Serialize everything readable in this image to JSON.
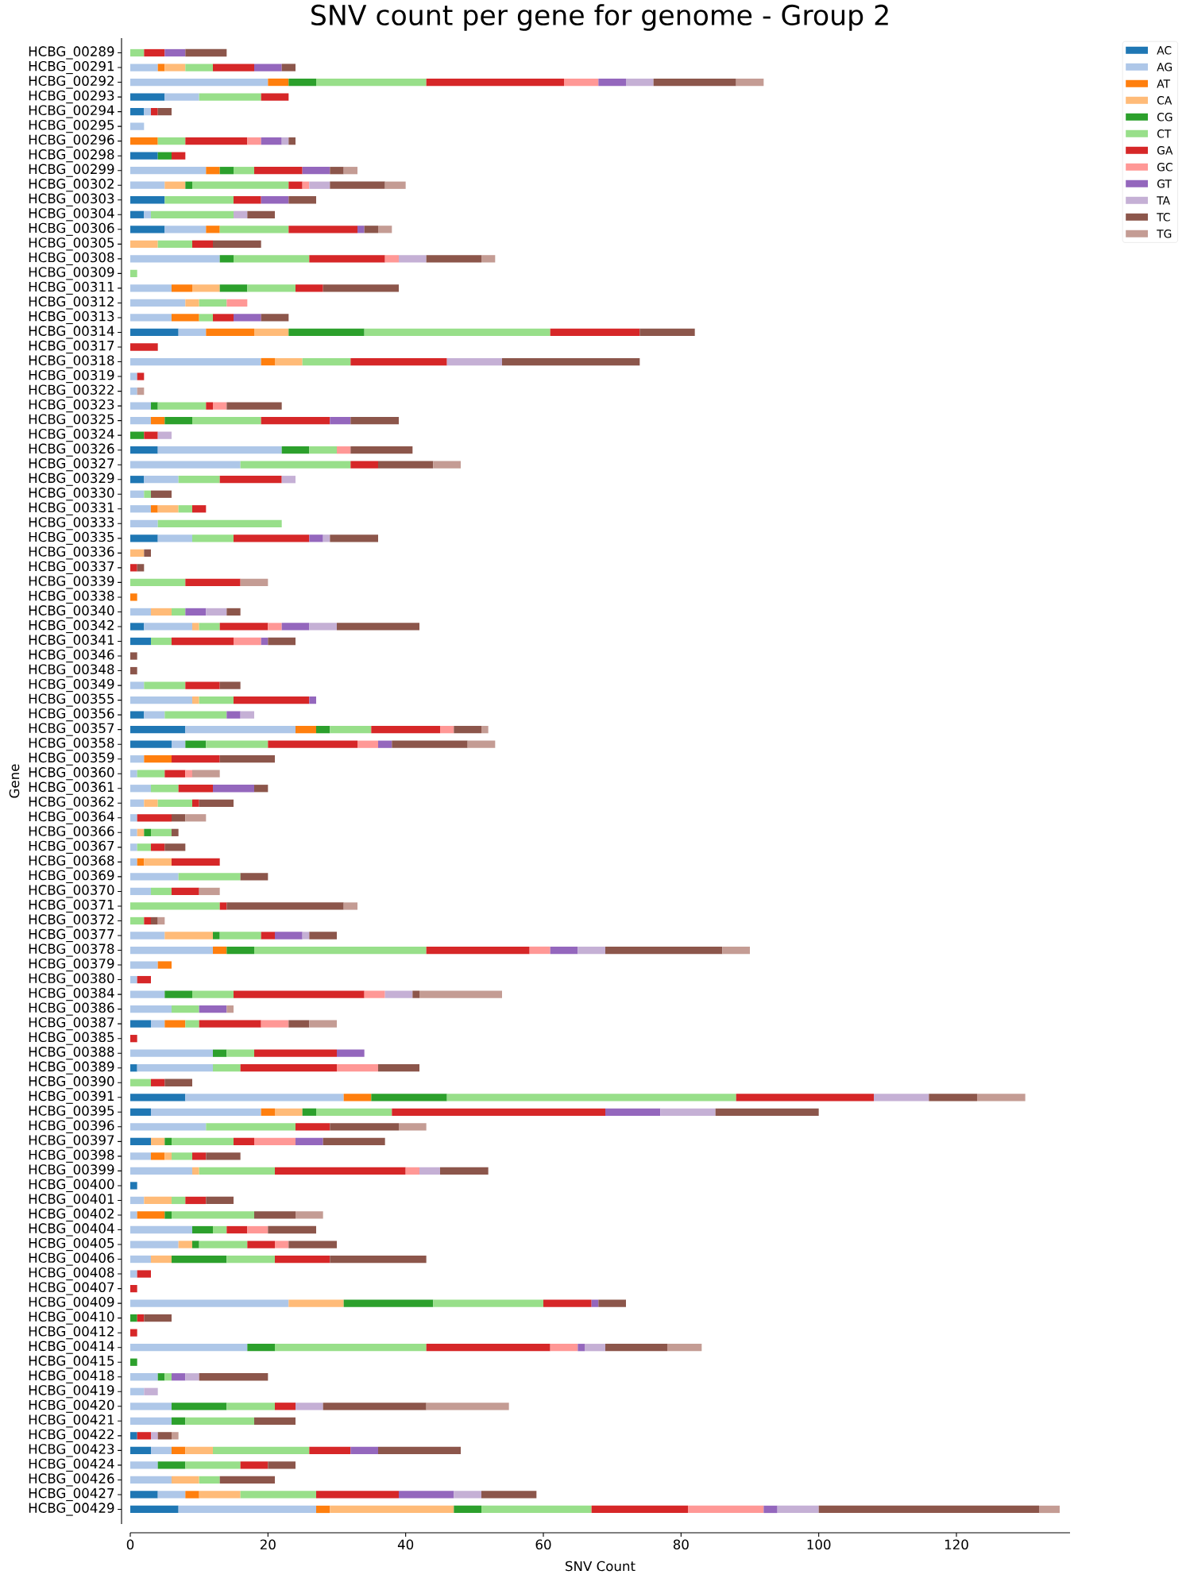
{
  "chart_data": {
    "type": "bar",
    "orientation": "horizontal",
    "stacked": true,
    "title": "SNV count per gene for genome - Group 2",
    "xlabel": "SNV Count",
    "ylabel": "Gene",
    "categories": [
      "HCBG_00289",
      "HCBG_00291",
      "HCBG_00292",
      "HCBG_00293",
      "HCBG_00294",
      "HCBG_00295",
      "HCBG_00296",
      "HCBG_00298",
      "HCBG_00299",
      "HCBG_00302",
      "HCBG_00303",
      "HCBG_00304",
      "HCBG_00306",
      "HCBG_00305",
      "HCBG_00308",
      "HCBG_00309",
      "HCBG_00311",
      "HCBG_00312",
      "HCBG_00313",
      "HCBG_00314",
      "HCBG_00317",
      "HCBG_00318",
      "HCBG_00319",
      "HCBG_00322",
      "HCBG_00323",
      "HCBG_00325",
      "HCBG_00324",
      "HCBG_00326",
      "HCBG_00327",
      "HCBG_00329",
      "HCBG_00330",
      "HCBG_00331",
      "HCBG_00333",
      "HCBG_00335",
      "HCBG_00336",
      "HCBG_00337",
      "HCBG_00339",
      "HCBG_00338",
      "HCBG_00340",
      "HCBG_00342",
      "HCBG_00341",
      "HCBG_00346",
      "HCBG_00348",
      "HCBG_00349",
      "HCBG_00355",
      "HCBG_00356",
      "HCBG_00357",
      "HCBG_00358",
      "HCBG_00359",
      "HCBG_00360",
      "HCBG_00361",
      "HCBG_00362",
      "HCBG_00364",
      "HCBG_00366",
      "HCBG_00367",
      "HCBG_00368",
      "HCBG_00369",
      "HCBG_00370",
      "HCBG_00371",
      "HCBG_00372",
      "HCBG_00377",
      "HCBG_00378",
      "HCBG_00379",
      "HCBG_00380",
      "HCBG_00384",
      "HCBG_00386",
      "HCBG_00387",
      "HCBG_00385",
      "HCBG_00388",
      "HCBG_00389",
      "HCBG_00390",
      "HCBG_00391",
      "HCBG_00395",
      "HCBG_00396",
      "HCBG_00397",
      "HCBG_00398",
      "HCBG_00399",
      "HCBG_00400",
      "HCBG_00401",
      "HCBG_00402",
      "HCBG_00404",
      "HCBG_00405",
      "HCBG_00406",
      "HCBG_00408",
      "HCBG_00407",
      "HCBG_00409",
      "HCBG_00410",
      "HCBG_00412",
      "HCBG_00414",
      "HCBG_00415",
      "HCBG_00418",
      "HCBG_00419",
      "HCBG_00420",
      "HCBG_00421",
      "HCBG_00422",
      "HCBG_00423",
      "HCBG_00424",
      "HCBG_00426",
      "HCBG_00427",
      "HCBG_00429"
    ],
    "series": [
      {
        "name": "AC",
        "color": "#1f77b4",
        "values": [
          null,
          null,
          null,
          5,
          2,
          null,
          null,
          4,
          null,
          null,
          5,
          2,
          5,
          null,
          null,
          null,
          null,
          null,
          null,
          7,
          null,
          null,
          null,
          null,
          null,
          null,
          null,
          4,
          null,
          2,
          null,
          null,
          null,
          4,
          null,
          null,
          null,
          null,
          null,
          2,
          3,
          null,
          null,
          null,
          null,
          2,
          8,
          6,
          null,
          null,
          null,
          null,
          null,
          null,
          null,
          null,
          null,
          null,
          null,
          null,
          null,
          null,
          null,
          null,
          null,
          null,
          3,
          null,
          null,
          1,
          null,
          8,
          3,
          null,
          3,
          null,
          null,
          1,
          null,
          null,
          null,
          null,
          null,
          null,
          null,
          null,
          null,
          null,
          null,
          null,
          null,
          null,
          null,
          null,
          1,
          3,
          null,
          null,
          4,
          7
        ]
      },
      {
        "name": "AG",
        "color": "#aec7e8",
        "values": [
          null,
          4,
          20,
          5,
          1,
          2,
          null,
          null,
          11,
          5,
          null,
          1,
          6,
          null,
          13,
          null,
          6,
          8,
          6,
          4,
          null,
          19,
          1,
          1,
          3,
          3,
          null,
          18,
          16,
          5,
          2,
          3,
          4,
          5,
          null,
          null,
          null,
          null,
          3,
          7,
          null,
          null,
          null,
          2,
          9,
          3,
          16,
          2,
          2,
          1,
          3,
          2,
          1,
          1,
          1,
          1,
          7,
          3,
          null,
          null,
          5,
          12,
          4,
          1,
          5,
          6,
          2,
          null,
          12,
          11,
          null,
          23,
          16,
          11,
          null,
          3,
          9,
          null,
          2,
          1,
          9,
          7,
          3,
          1,
          null,
          23,
          null,
          null,
          17,
          null,
          4,
          2,
          6,
          6,
          null,
          3,
          4,
          6,
          4,
          20
        ]
      },
      {
        "name": "AT",
        "color": "#ff7f0e",
        "values": [
          null,
          1,
          3,
          null,
          null,
          null,
          4,
          null,
          2,
          null,
          null,
          null,
          2,
          null,
          null,
          null,
          3,
          null,
          4,
          7,
          null,
          2,
          null,
          null,
          null,
          2,
          null,
          null,
          null,
          null,
          null,
          1,
          null,
          null,
          null,
          null,
          null,
          1,
          null,
          null,
          null,
          null,
          null,
          null,
          null,
          null,
          3,
          null,
          4,
          null,
          null,
          null,
          null,
          null,
          null,
          1,
          null,
          null,
          null,
          null,
          null,
          2,
          2,
          null,
          null,
          null,
          3,
          null,
          null,
          null,
          null,
          4,
          2,
          null,
          null,
          2,
          null,
          null,
          null,
          4,
          null,
          null,
          null,
          null,
          null,
          null,
          null,
          null,
          null,
          null,
          null,
          null,
          null,
          null,
          null,
          2,
          null,
          null,
          2,
          2
        ]
      },
      {
        "name": "CA",
        "color": "#ffbb78",
        "values": [
          null,
          3,
          null,
          null,
          null,
          null,
          null,
          null,
          null,
          3,
          null,
          null,
          null,
          4,
          null,
          null,
          4,
          2,
          null,
          5,
          null,
          4,
          null,
          null,
          null,
          null,
          null,
          null,
          null,
          null,
          null,
          3,
          null,
          null,
          2,
          null,
          null,
          null,
          3,
          1,
          null,
          null,
          null,
          null,
          1,
          null,
          null,
          null,
          null,
          null,
          null,
          2,
          null,
          1,
          null,
          4,
          null,
          null,
          null,
          null,
          7,
          null,
          null,
          null,
          null,
          null,
          null,
          null,
          null,
          null,
          null,
          null,
          4,
          null,
          2,
          1,
          1,
          null,
          4,
          null,
          null,
          2,
          3,
          null,
          null,
          8,
          null,
          null,
          null,
          null,
          null,
          null,
          null,
          null,
          null,
          4,
          null,
          4,
          6,
          18
        ]
      },
      {
        "name": "CG",
        "color": "#2ca02c",
        "values": [
          null,
          null,
          4,
          null,
          null,
          null,
          null,
          2,
          2,
          1,
          null,
          null,
          null,
          null,
          2,
          null,
          4,
          null,
          null,
          11,
          null,
          null,
          null,
          null,
          1,
          4,
          2,
          4,
          null,
          null,
          null,
          null,
          null,
          null,
          null,
          null,
          null,
          null,
          null,
          null,
          null,
          null,
          null,
          null,
          null,
          null,
          2,
          3,
          null,
          null,
          null,
          null,
          null,
          1,
          null,
          null,
          null,
          null,
          null,
          null,
          1,
          4,
          null,
          null,
          4,
          null,
          null,
          null,
          2,
          null,
          null,
          11,
          2,
          null,
          1,
          null,
          null,
          null,
          null,
          1,
          3,
          1,
          8,
          null,
          null,
          13,
          1,
          null,
          4,
          1,
          1,
          null,
          8,
          2,
          null,
          null,
          4,
          null,
          null,
          4
        ]
      },
      {
        "name": "CT",
        "color": "#98df8a",
        "values": [
          2,
          4,
          16,
          9,
          null,
          null,
          4,
          null,
          3,
          14,
          10,
          12,
          10,
          5,
          11,
          1,
          7,
          4,
          2,
          27,
          null,
          7,
          null,
          null,
          7,
          10,
          null,
          4,
          16,
          6,
          1,
          2,
          18,
          6,
          null,
          null,
          8,
          null,
          2,
          3,
          3,
          null,
          null,
          6,
          5,
          9,
          6,
          9,
          null,
          4,
          4,
          5,
          null,
          3,
          2,
          null,
          9,
          3,
          13,
          2,
          6,
          25,
          null,
          null,
          6,
          4,
          2,
          null,
          4,
          4,
          3,
          42,
          11,
          13,
          9,
          3,
          11,
          null,
          2,
          12,
          2,
          7,
          7,
          null,
          null,
          16,
          null,
          null,
          22,
          null,
          1,
          null,
          7,
          10,
          null,
          14,
          8,
          3,
          11,
          16
        ]
      },
      {
        "name": "GA",
        "color": "#d62728",
        "values": [
          3,
          6,
          20,
          4,
          1,
          null,
          9,
          2,
          7,
          2,
          4,
          null,
          10,
          3,
          11,
          null,
          4,
          null,
          3,
          13,
          4,
          14,
          1,
          null,
          1,
          10,
          2,
          null,
          4,
          9,
          null,
          2,
          null,
          11,
          null,
          1,
          8,
          null,
          null,
          7,
          9,
          null,
          null,
          5,
          11,
          null,
          10,
          13,
          7,
          3,
          5,
          1,
          5,
          null,
          2,
          7,
          null,
          4,
          1,
          1,
          2,
          15,
          null,
          2,
          19,
          null,
          9,
          1,
          12,
          14,
          2,
          20,
          31,
          5,
          3,
          2,
          19,
          null,
          3,
          null,
          3,
          4,
          8,
          2,
          1,
          7,
          1,
          1,
          18,
          null,
          null,
          null,
          3,
          null,
          2,
          6,
          4,
          null,
          12,
          14
        ]
      },
      {
        "name": "GC",
        "color": "#ff9896",
        "values": [
          null,
          null,
          5,
          null,
          null,
          null,
          2,
          null,
          null,
          1,
          null,
          null,
          null,
          null,
          2,
          null,
          null,
          3,
          null,
          null,
          null,
          null,
          null,
          null,
          2,
          null,
          null,
          2,
          null,
          null,
          null,
          null,
          null,
          null,
          null,
          null,
          null,
          null,
          null,
          2,
          4,
          null,
          null,
          null,
          null,
          null,
          2,
          3,
          null,
          1,
          null,
          null,
          null,
          null,
          null,
          null,
          null,
          null,
          null,
          null,
          null,
          3,
          null,
          null,
          3,
          null,
          4,
          null,
          null,
          6,
          null,
          null,
          null,
          null,
          6,
          null,
          2,
          null,
          null,
          null,
          3,
          2,
          null,
          null,
          null,
          null,
          null,
          null,
          4,
          null,
          null,
          null,
          null,
          null,
          null,
          null,
          null,
          null,
          null,
          11
        ]
      },
      {
        "name": "GT",
        "color": "#9467bd",
        "values": [
          3,
          4,
          4,
          null,
          null,
          null,
          3,
          null,
          4,
          null,
          4,
          null,
          1,
          null,
          null,
          null,
          null,
          null,
          4,
          null,
          null,
          null,
          null,
          null,
          null,
          3,
          null,
          null,
          null,
          null,
          null,
          null,
          null,
          2,
          null,
          null,
          null,
          null,
          3,
          4,
          1,
          null,
          null,
          null,
          1,
          2,
          null,
          2,
          null,
          null,
          6,
          null,
          null,
          null,
          null,
          null,
          null,
          null,
          null,
          null,
          4,
          4,
          null,
          null,
          null,
          4,
          null,
          null,
          4,
          null,
          null,
          null,
          8,
          null,
          4,
          null,
          null,
          null,
          null,
          null,
          null,
          null,
          null,
          null,
          null,
          1,
          null,
          null,
          1,
          null,
          2,
          null,
          null,
          null,
          null,
          4,
          null,
          null,
          8,
          2
        ]
      },
      {
        "name": "TA",
        "color": "#c5b0d5",
        "values": [
          null,
          null,
          4,
          null,
          null,
          null,
          1,
          null,
          null,
          3,
          null,
          2,
          null,
          null,
          4,
          null,
          null,
          null,
          null,
          null,
          null,
          8,
          null,
          null,
          null,
          null,
          2,
          null,
          null,
          2,
          null,
          null,
          null,
          1,
          null,
          null,
          null,
          null,
          3,
          4,
          null,
          null,
          null,
          null,
          null,
          2,
          null,
          null,
          null,
          null,
          null,
          null,
          null,
          null,
          null,
          null,
          null,
          null,
          null,
          null,
          1,
          4,
          null,
          null,
          4,
          null,
          null,
          null,
          null,
          null,
          null,
          8,
          8,
          null,
          null,
          null,
          3,
          null,
          null,
          null,
          null,
          null,
          null,
          null,
          null,
          null,
          null,
          null,
          3,
          null,
          2,
          2,
          4,
          null,
          1,
          null,
          null,
          null,
          4,
          6
        ]
      },
      {
        "name": "TC",
        "color": "#8c564b",
        "values": [
          6,
          2,
          12,
          null,
          2,
          null,
          1,
          null,
          2,
          8,
          4,
          4,
          2,
          7,
          8,
          null,
          11,
          null,
          4,
          8,
          null,
          20,
          null,
          null,
          8,
          7,
          null,
          9,
          8,
          null,
          3,
          null,
          null,
          7,
          1,
          1,
          null,
          null,
          2,
          12,
          4,
          1,
          1,
          3,
          null,
          null,
          4,
          11,
          8,
          null,
          2,
          5,
          2,
          1,
          3,
          null,
          4,
          null,
          17,
          1,
          4,
          17,
          null,
          null,
          1,
          null,
          3,
          null,
          null,
          6,
          4,
          7,
          15,
          10,
          9,
          5,
          7,
          null,
          4,
          6,
          7,
          7,
          14,
          null,
          null,
          4,
          4,
          null,
          9,
          null,
          10,
          null,
          15,
          6,
          2,
          12,
          4,
          8,
          8,
          32
        ]
      },
      {
        "name": "TG",
        "color": "#c49c94",
        "values": [
          null,
          null,
          4,
          null,
          null,
          null,
          null,
          null,
          2,
          3,
          null,
          null,
          2,
          null,
          2,
          null,
          null,
          null,
          null,
          null,
          null,
          null,
          null,
          1,
          null,
          null,
          null,
          null,
          4,
          null,
          null,
          null,
          null,
          null,
          null,
          null,
          4,
          null,
          null,
          null,
          null,
          null,
          null,
          null,
          null,
          null,
          1,
          4,
          null,
          4,
          null,
          null,
          3,
          null,
          null,
          null,
          null,
          3,
          2,
          1,
          null,
          4,
          null,
          null,
          12,
          1,
          4,
          null,
          null,
          null,
          null,
          7,
          null,
          4,
          null,
          null,
          null,
          null,
          null,
          4,
          null,
          null,
          null,
          null,
          null,
          null,
          null,
          null,
          5,
          null,
          null,
          null,
          12,
          null,
          1,
          null,
          null,
          null,
          null,
          3
        ]
      }
    ],
    "xlim": [
      0,
      136.5
    ],
    "xticks": [
      0,
      20,
      40,
      60,
      80,
      100,
      120
    ],
    "legend": "top right"
  }
}
